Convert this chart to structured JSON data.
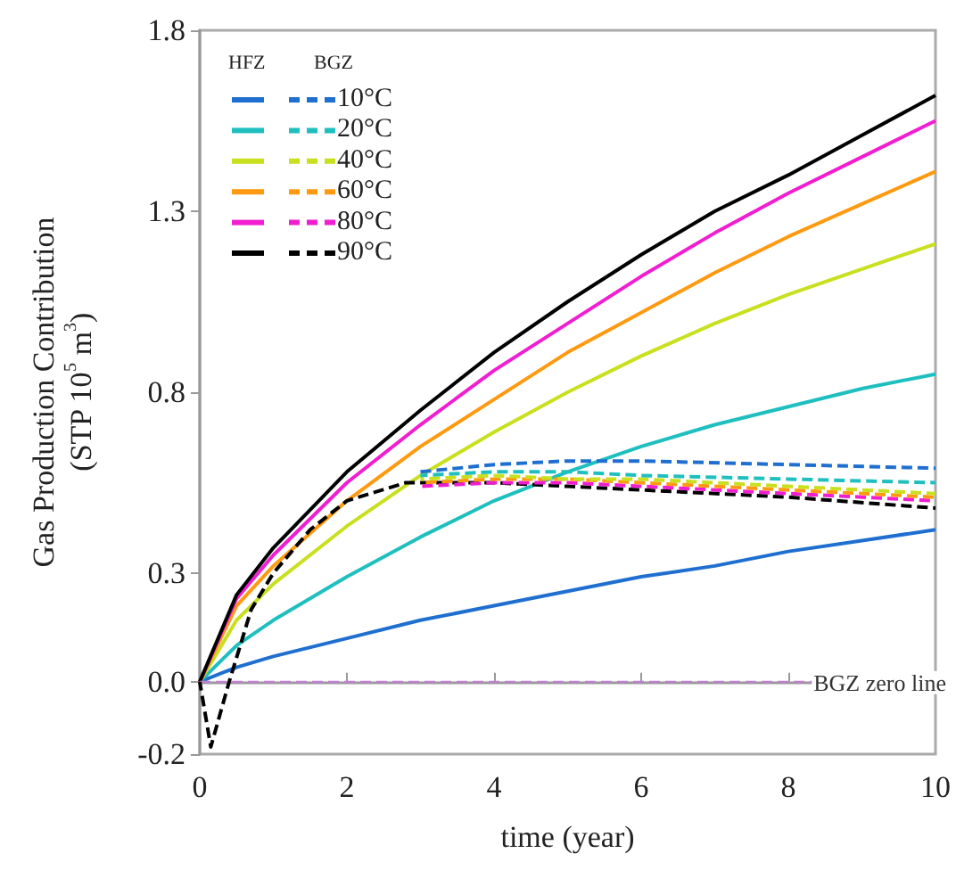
{
  "chart_data": {
    "type": "line",
    "xlabel": "time (year)",
    "ylabel": "Gas Production Contribution\n(STP 10$^{5}$ m$^{3}$)",
    "annotations": [
      "HFZ",
      "BGZ"
    ],
    "xlim": [
      0,
      10
    ],
    "xticks": [
      0,
      2,
      4,
      6,
      8,
      10
    ],
    "ylim": [
      -0.2,
      1.8
    ],
    "yticks": [
      -0.2,
      {
        "value": 0,
        "label": "0.0"
      },
      0.3,
      0.8,
      1.3,
      1.8
    ],
    "grid": false,
    "legend": "top left",
    "marker": "none",
    "ref_lines": [
      {
        "axis": "y",
        "value": 0,
        "label": "BGZ zero line",
        "color": "#c080d0",
        "line_style": "dashed"
      }
    ],
    "series": [
      {
        "color": "#1f6fd0",
        "line_style": "solid",
        "x": [
          0,
          0.5,
          1,
          2,
          3,
          4,
          5,
          6,
          7,
          8,
          9,
          10
        ],
        "values": [
          0,
          0.04,
          0.07,
          0.12,
          0.17,
          0.21,
          0.25,
          0.29,
          0.32,
          0.36,
          0.39,
          0.42
        ]
      },
      {
        "color": "#1fbfbf",
        "line_style": "solid",
        "x": [
          0,
          0.5,
          1,
          2,
          3,
          4,
          5,
          6,
          7,
          8,
          9,
          10
        ],
        "values": [
          0,
          0.1,
          0.17,
          0.29,
          0.4,
          0.5,
          0.58,
          0.65,
          0.71,
          0.76,
          0.81,
          0.85
        ]
      },
      {
        "color": "#c8e01e",
        "line_style": "solid",
        "x": [
          0,
          0.5,
          1,
          2,
          3,
          4,
          5,
          6,
          7,
          8,
          9,
          10
        ],
        "values": [
          0,
          0.17,
          0.27,
          0.43,
          0.57,
          0.69,
          0.8,
          0.9,
          0.99,
          1.07,
          1.14,
          1.21
        ]
      },
      {
        "color": "#ff9a10",
        "line_style": "solid",
        "x": [
          0,
          0.5,
          1,
          2,
          3,
          4,
          5,
          6,
          7,
          8,
          9,
          10
        ],
        "values": [
          0,
          0.21,
          0.32,
          0.5,
          0.65,
          0.78,
          0.91,
          1.02,
          1.13,
          1.23,
          1.32,
          1.41
        ]
      },
      {
        "color": "#f01ed0",
        "line_style": "solid",
        "x": [
          0,
          0.5,
          1,
          2,
          3,
          4,
          5,
          6,
          7,
          8,
          9,
          10
        ],
        "values": [
          0,
          0.23,
          0.35,
          0.55,
          0.71,
          0.86,
          0.99,
          1.12,
          1.24,
          1.35,
          1.45,
          1.55
        ]
      },
      {
        "color": "#000000",
        "line_style": "solid",
        "x": [
          0,
          0.5,
          1,
          2,
          3,
          4,
          5,
          6,
          7,
          8,
          9,
          10
        ],
        "values": [
          0,
          0.24,
          0.37,
          0.58,
          0.75,
          0.91,
          1.05,
          1.18,
          1.3,
          1.4,
          1.51,
          1.62
        ]
      },
      {
        "name": "10°C",
        "color": "#1f6fd0",
        "line_style": "dashed",
        "x": [
          3,
          4,
          5,
          6,
          8,
          10
        ],
        "values": [
          0.58,
          0.6,
          0.61,
          0.61,
          0.6,
          0.59
        ]
      },
      {
        "name": "20°C",
        "color": "#1fbfbf",
        "line_style": "dashed",
        "x": [
          3,
          4,
          5,
          6,
          8,
          10
        ],
        "values": [
          0.57,
          0.58,
          0.58,
          0.57,
          0.56,
          0.55
        ]
      },
      {
        "name": "40°C",
        "color": "#c8e01e",
        "line_style": "dashed",
        "x": [
          3,
          4,
          5,
          6,
          8,
          10
        ],
        "values": [
          0.56,
          0.57,
          0.56,
          0.56,
          0.54,
          0.52
        ]
      },
      {
        "name": "60°C",
        "color": "#ff9a10",
        "line_style": "dashed",
        "x": [
          3,
          4,
          5,
          6,
          8,
          10
        ],
        "values": [
          0.55,
          0.56,
          0.56,
          0.55,
          0.53,
          0.51
        ]
      },
      {
        "name": "80°C",
        "color": "#f01ed0",
        "line_style": "dashed",
        "x": [
          3,
          4,
          5,
          6,
          8,
          10
        ],
        "values": [
          0.54,
          0.55,
          0.55,
          0.54,
          0.52,
          0.5
        ]
      },
      {
        "name": "90°C",
        "color": "#000000",
        "line_style": "dashed",
        "x": [
          0,
          0.15,
          0.4,
          0.7,
          1,
          1.5,
          2,
          2.8,
          4,
          5,
          6,
          8,
          10
        ],
        "values": [
          0,
          -0.18,
          0,
          0.2,
          0.3,
          0.42,
          0.5,
          0.55,
          0.55,
          0.54,
          0.53,
          0.51,
          0.48
        ]
      }
    ]
  }
}
